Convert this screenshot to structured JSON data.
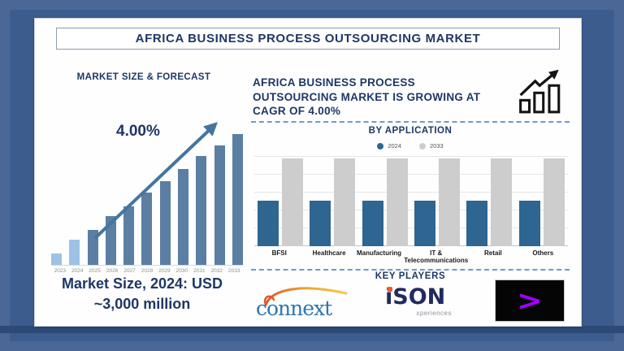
{
  "header": {
    "title": "AFRICA BUSINESS PROCESS OUTSOURCING MARKET"
  },
  "left_panel": {
    "heading": "MARKET SIZE & FORECAST",
    "cagr_label": "4.00%",
    "note_line1": "Market Size, 2024: USD",
    "note_line2": "~3,000 million"
  },
  "right_panel": {
    "headline_lines": [
      "AFRICA BUSINESS PROCESS",
      "OUTSOURCING MARKET IS GROWING AT",
      "CAGR OF 4.00%"
    ],
    "growth_icon": "bar-chart-with-rising-arrow",
    "by_application_heading": "BY APPLICATION",
    "key_players_heading": "KEY PLAYERS"
  },
  "key_players": {
    "connext": {
      "text": "connext"
    },
    "ison": {
      "text": "iSON",
      "subtext": "xperiences"
    },
    "accenture": {
      "symbol": ">"
    }
  },
  "chart_data": [
    {
      "id": "market_size_forecast",
      "type": "bar",
      "title": "MARKET SIZE & FORECAST",
      "categories": [
        "2023",
        "2024",
        "2025",
        "2026",
        "2027",
        "2028",
        "2029",
        "2030",
        "2031",
        "2032",
        "2033"
      ],
      "values": [
        9,
        19,
        27,
        37,
        45,
        55,
        64,
        73,
        83,
        91,
        100
      ],
      "unit": "relative bar height, 2033 = 100 (illustrative; 2024 = ~USD 3,000 million)",
      "annotation": "4.00%",
      "highlight_years": [
        "2023",
        "2024"
      ],
      "ylim": [
        0,
        100
      ],
      "grid": false,
      "xlabel": "",
      "ylabel": ""
    },
    {
      "id": "by_application",
      "type": "bar",
      "title": "BY APPLICATION",
      "categories": [
        "BFSI",
        "Healthcare",
        "Manufacturing",
        "IT & Telecommunications",
        "Retail",
        "Others"
      ],
      "series": [
        {
          "name": "2024",
          "values": [
            52,
            52,
            52,
            52,
            52,
            52
          ]
        },
        {
          "name": "2033",
          "values": [
            100,
            100,
            100,
            100,
            100,
            100
          ]
        }
      ],
      "unit": "relative bar height, max = 100",
      "ylim": [
        0,
        100
      ],
      "grid": true,
      "legend_position": "top",
      "xlabel": "",
      "ylabel": ""
    }
  ],
  "colors": {
    "page_background": "#3d5c8e",
    "navy_text": "#1e3765",
    "left_bar_actual": "#9cc2e5",
    "left_bar_forecast": "#5b7ea3",
    "arrow": "#43759f",
    "right_bar_2024": "#2e6591",
    "right_bar_2033": "#cdcdcd",
    "dashed_separator": "#6f9ac8",
    "accenture_purple": "#a100ff",
    "connext_blue": "#2f76ae",
    "swoosh_orange": "#e2562b",
    "swoosh_yellow": "#f6c94a"
  }
}
